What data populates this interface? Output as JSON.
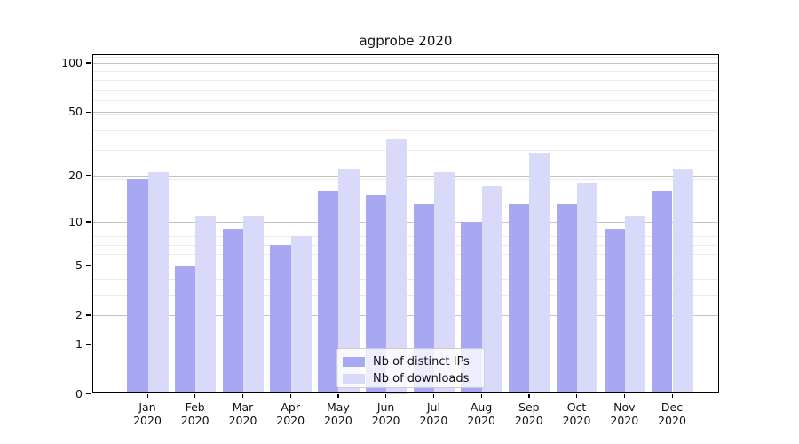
{
  "title": "agprobe 2020",
  "chart_data": {
    "type": "bar",
    "title": "agprobe 2020",
    "categories": [
      "Jan 2020",
      "Feb 2020",
      "Mar 2020",
      "Apr 2020",
      "May 2020",
      "Jun 2020",
      "Jul 2020",
      "Aug 2020",
      "Sep 2020",
      "Oct 2020",
      "Nov 2020",
      "Dec 2020"
    ],
    "x_axis": {
      "months": [
        "Jan",
        "Feb",
        "Mar",
        "Apr",
        "May",
        "Jun",
        "Jul",
        "Aug",
        "Sep",
        "Oct",
        "Nov",
        "Dec"
      ],
      "year": "2020"
    },
    "series": [
      {
        "name": "Nb of distinct IPs",
        "color": "#a7a7f3",
        "values": [
          19,
          5,
          9,
          7,
          16,
          15,
          13,
          10,
          13,
          13,
          9,
          16
        ]
      },
      {
        "name": "Nb of downloads",
        "color": "#d9d9f9",
        "values": [
          21,
          11,
          11,
          8,
          22,
          34,
          21,
          17,
          28,
          18,
          11,
          22
        ]
      }
    ],
    "y_axis": {
      "scale": "log1p",
      "ticks": [
        0,
        1,
        2,
        5,
        10,
        20,
        50,
        100
      ],
      "minor_ticks": [
        3,
        4,
        6,
        7,
        8,
        19,
        29,
        39,
        49,
        59,
        69,
        79,
        89,
        109
      ],
      "range": [
        0,
        110
      ]
    },
    "legend": {
      "position": "lower center",
      "entries": [
        "Nb of distinct IPs",
        "Nb of downloads"
      ]
    },
    "grid": "on",
    "xlabel": "",
    "ylabel": ""
  },
  "colors": {
    "bar_dark": "#a7a7f3",
    "bar_light": "#d9d9f9",
    "grid_major": "#c3c3c3",
    "grid_minor": "#eaeaea",
    "axis": "#000000",
    "background": "#ffffff"
  }
}
